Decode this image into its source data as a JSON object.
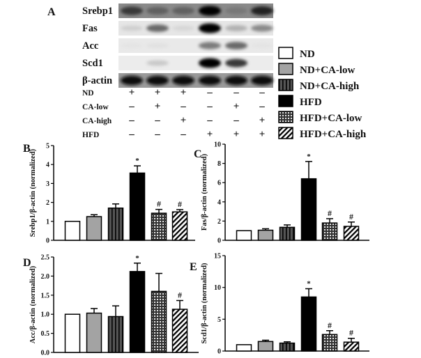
{
  "panel_a": {
    "label": "A",
    "blot_rows": [
      {
        "name": "Srebp1",
        "intensity": [
          0.75,
          0.6,
          0.6,
          1.0,
          0.5,
          0.85
        ],
        "background": "#8a8a8a"
      },
      {
        "name": "Fas",
        "intensity": [
          0.2,
          0.6,
          0.15,
          1.0,
          0.35,
          0.5
        ],
        "background": "#e6e6e6"
      },
      {
        "name": "Acc",
        "intensity": [
          0.05,
          0.08,
          0.03,
          0.55,
          0.6,
          0.05
        ],
        "background": "#e9e9e9"
      },
      {
        "name": "Scd1",
        "intensity": [
          0.02,
          0.25,
          0.02,
          1.0,
          0.75,
          0.03
        ],
        "background": "#ececec"
      },
      {
        "name": "β-actin",
        "intensity": [
          0.95,
          0.95,
          0.95,
          0.95,
          0.95,
          0.95
        ],
        "background": "#9a9a9a"
      }
    ],
    "treatments": [
      {
        "name": "ND",
        "marks": [
          "+",
          "+",
          "+",
          "–",
          "–",
          "–"
        ]
      },
      {
        "name": "CA-low",
        "marks": [
          "–",
          "+",
          "–",
          "–",
          "+",
          "–"
        ]
      },
      {
        "name": "CA-high",
        "marks": [
          "–",
          "–",
          "+",
          "–",
          "–",
          "+"
        ]
      },
      {
        "name": "HFD",
        "marks": [
          "–",
          "–",
          "–",
          "+",
          "+",
          "+"
        ]
      }
    ]
  },
  "legend": [
    {
      "name": "ND",
      "pattern": "white"
    },
    {
      "name": "ND+CA-low",
      "pattern": "gray"
    },
    {
      "name": "ND+CA-high",
      "pattern": "vstripe"
    },
    {
      "name": "HFD",
      "pattern": "black"
    },
    {
      "name": "HFD+CA-low",
      "pattern": "grid"
    },
    {
      "name": "HFD+CA-high",
      "pattern": "diag"
    }
  ],
  "colors": {
    "gray": "#a3a3a3",
    "dark": "#2e2e2e",
    "black": "#000000"
  },
  "chart_data": [
    {
      "panel": "B",
      "type": "bar",
      "ylabel": "Srebp1/β-actin (normalized)",
      "categories": [
        "ND",
        "ND+CA-low",
        "ND+CA-high",
        "HFD",
        "HFD+CA-low",
        "HFD+CA-high"
      ],
      "values": [
        1.0,
        1.25,
        1.7,
        3.55,
        1.43,
        1.5
      ],
      "errors": [
        0,
        0.1,
        0.22,
        0.38,
        0.2,
        0.12
      ],
      "annotations": [
        "",
        "",
        "",
        "*",
        "#",
        "#"
      ],
      "ylim": [
        0,
        5
      ],
      "yticks": [
        "0",
        "1",
        "2",
        "3",
        "4",
        "5"
      ]
    },
    {
      "panel": "C",
      "type": "bar",
      "ylabel": "Fas/β-actin (normalized)",
      "categories": [
        "ND",
        "ND+CA-low",
        "ND+CA-high",
        "HFD",
        "HFD+CA-low",
        "HFD+CA-high"
      ],
      "values": [
        1.0,
        1.05,
        1.35,
        6.4,
        1.8,
        1.45
      ],
      "errors": [
        0,
        0.15,
        0.25,
        1.8,
        0.45,
        0.45
      ],
      "annotations": [
        "",
        "",
        "",
        "*",
        "#",
        "#"
      ],
      "ylim": [
        0,
        10
      ],
      "yticks": [
        "0",
        "2",
        "4",
        "6",
        "8",
        "10"
      ]
    },
    {
      "panel": "D",
      "type": "bar",
      "ylabel": "Acc/β-actin (normalized)",
      "categories": [
        "ND",
        "ND+CA-low",
        "ND+CA-high",
        "HFD",
        "HFD+CA-low",
        "HFD+CA-high"
      ],
      "values": [
        1.0,
        1.03,
        0.94,
        2.12,
        1.6,
        1.13
      ],
      "errors": [
        0,
        0.12,
        0.28,
        0.22,
        0.47,
        0.23
      ],
      "annotations": [
        "",
        "",
        "",
        "*",
        "",
        "#"
      ],
      "ylim": [
        0,
        2.5
      ],
      "yticks": [
        "0.0",
        "0.5",
        "1.0",
        "1.5",
        "2.0",
        "2.5"
      ]
    },
    {
      "panel": "E",
      "type": "bar",
      "ylabel": "Scd1/β-actin (normalized)",
      "categories": [
        "ND",
        "ND+CA-low",
        "ND+CA-high",
        "HFD",
        "HFD+CA-low",
        "HFD+CA-high"
      ],
      "values": [
        1.0,
        1.5,
        1.25,
        8.5,
        2.6,
        1.4
      ],
      "errors": [
        0,
        0.2,
        0.2,
        1.3,
        0.6,
        0.6
      ],
      "annotations": [
        "",
        "",
        "",
        "*",
        "#",
        "#"
      ],
      "ylim": [
        0,
        15
      ],
      "yticks": [
        "0",
        "5",
        "10",
        "15"
      ]
    }
  ]
}
